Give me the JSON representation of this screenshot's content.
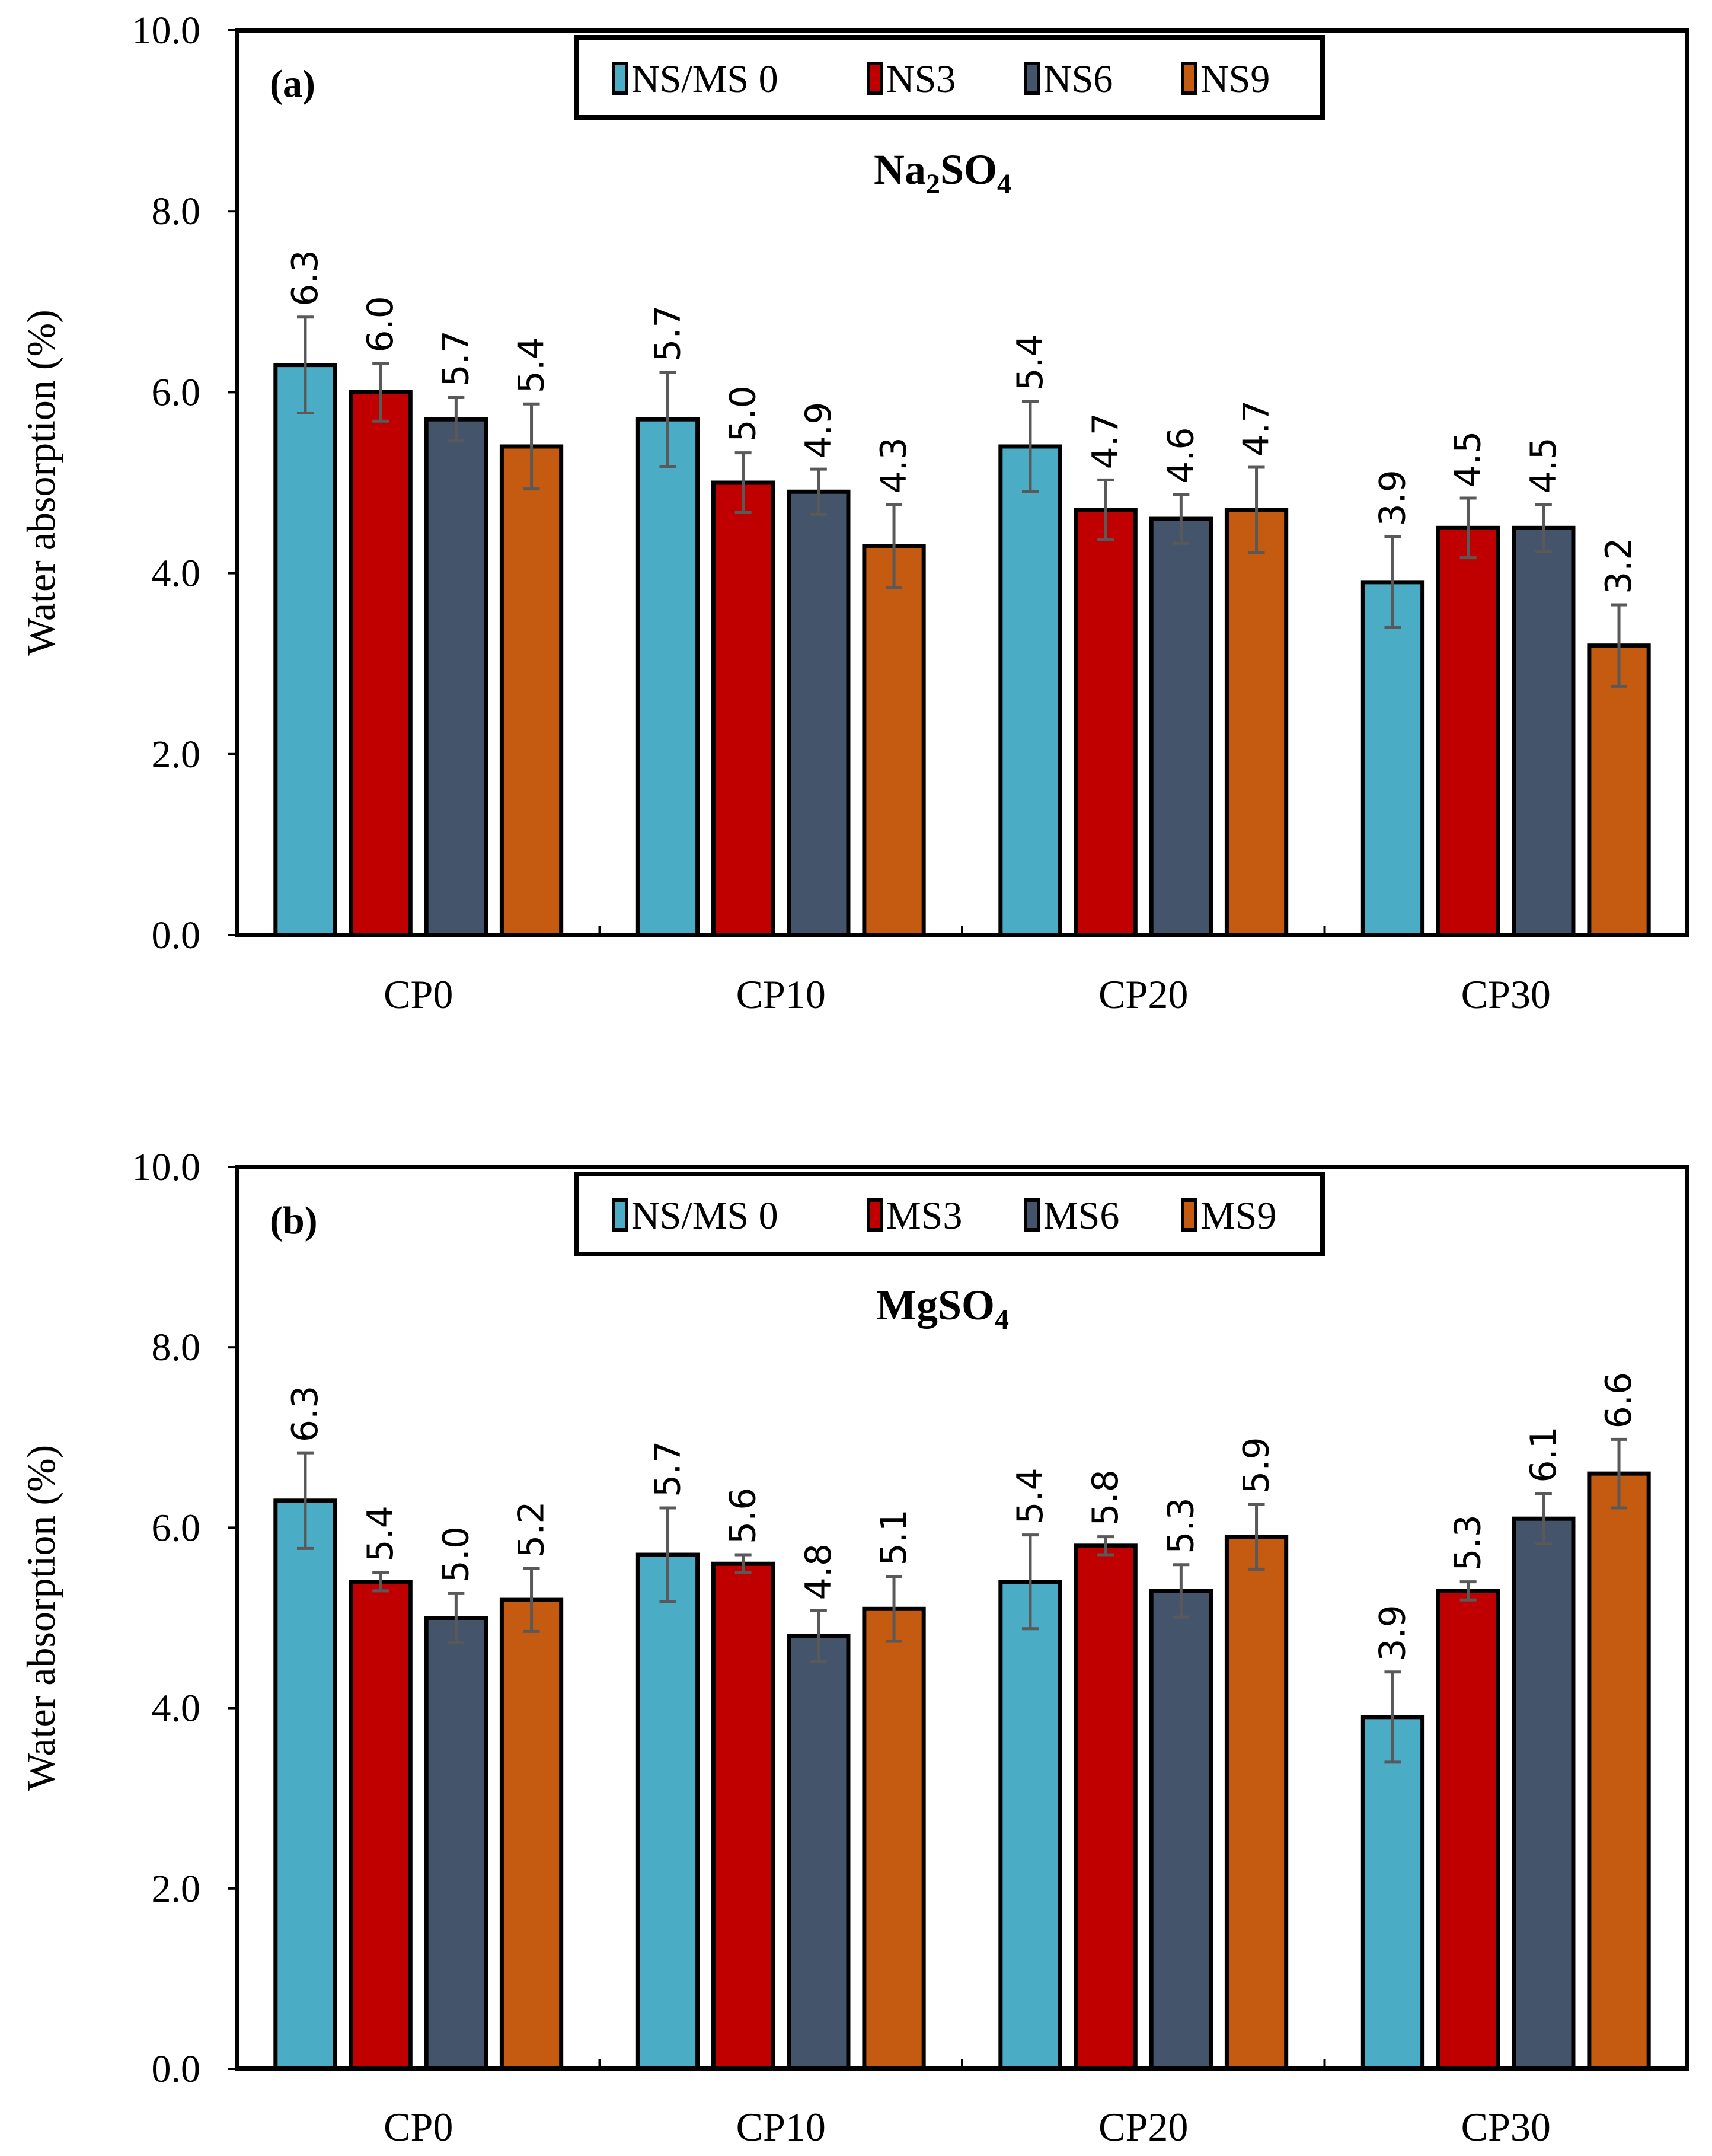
{
  "chart_data": [
    {
      "type": "bar",
      "panel_label": "(a)",
      "title": "Na2SO4",
      "title_parts": [
        "Na",
        "2",
        "SO",
        "4"
      ],
      "xlabel": "",
      "ylabel": "Water absorption (%)",
      "ylim": [
        0,
        10
      ],
      "yticks": [
        "0.0",
        "2.0",
        "4.0",
        "6.0",
        "8.0",
        "10.0"
      ],
      "categories": [
        "CP0",
        "CP10",
        "CP20",
        "CP30"
      ],
      "legend_position": "top-center",
      "series": [
        {
          "name": "NS/MS 0",
          "color": "#4BACC6",
          "values": [
            6.3,
            5.7,
            5.4,
            3.9
          ],
          "labels": [
            "6.3",
            "5.7",
            "5.4",
            "3.9"
          ],
          "errors": [
            0.53,
            0.52,
            0.5,
            0.5
          ]
        },
        {
          "name": "NS3",
          "color": "#C00000",
          "values": [
            6.0,
            5.0,
            4.7,
            4.5
          ],
          "labels": [
            "6.0",
            "5.0",
            "4.7",
            "4.5"
          ],
          "errors": [
            0.32,
            0.33,
            0.33,
            0.33
          ]
        },
        {
          "name": "NS6",
          "color": "#44546A",
          "values": [
            5.7,
            4.9,
            4.6,
            4.5
          ],
          "labels": [
            "5.7",
            "4.9",
            "4.6",
            "4.5"
          ],
          "errors": [
            0.24,
            0.25,
            0.27,
            0.26
          ]
        },
        {
          "name": "NS9",
          "color": "#C55A11",
          "values": [
            5.4,
            4.3,
            4.7,
            3.2
          ],
          "labels": [
            "5.4",
            "4.3",
            "4.7",
            "3.2"
          ],
          "errors": [
            0.47,
            0.46,
            0.47,
            0.45
          ]
        }
      ]
    },
    {
      "type": "bar",
      "panel_label": "(b)",
      "title": "MgSO4",
      "title_parts": [
        "MgSO",
        "4"
      ],
      "xlabel": "",
      "ylabel": "Water absorption (%)",
      "ylim": [
        0,
        10
      ],
      "yticks": [
        "0.0",
        "2.0",
        "4.0",
        "6.0",
        "8.0",
        "10.0"
      ],
      "categories": [
        "CP0",
        "CP10",
        "CP20",
        "CP30"
      ],
      "legend_position": "top-center",
      "series": [
        {
          "name": "NS/MS 0",
          "color": "#4BACC6",
          "values": [
            6.3,
            5.7,
            5.4,
            3.9
          ],
          "labels": [
            "6.3",
            "5.7",
            "5.4",
            "3.9"
          ],
          "errors": [
            0.53,
            0.52,
            0.52,
            0.5
          ]
        },
        {
          "name": "MS3",
          "color": "#C00000",
          "values": [
            5.4,
            5.6,
            5.8,
            5.3
          ],
          "labels": [
            "5.4",
            "5.6",
            "5.8",
            "5.3"
          ],
          "errors": [
            0.1,
            0.1,
            0.1,
            0.1
          ]
        },
        {
          "name": "MS6",
          "color": "#44546A",
          "values": [
            5.0,
            4.8,
            5.3,
            6.1
          ],
          "labels": [
            "5.0",
            "4.8",
            "5.3",
            "6.1"
          ],
          "errors": [
            0.27,
            0.28,
            0.29,
            0.28
          ]
        },
        {
          "name": "MS9",
          "color": "#C55A11",
          "values": [
            5.2,
            5.1,
            5.9,
            6.6
          ],
          "labels": [
            "5.2",
            "5.1",
            "5.9",
            "6.6"
          ],
          "errors": [
            0.35,
            0.36,
            0.36,
            0.38
          ]
        }
      ]
    }
  ]
}
